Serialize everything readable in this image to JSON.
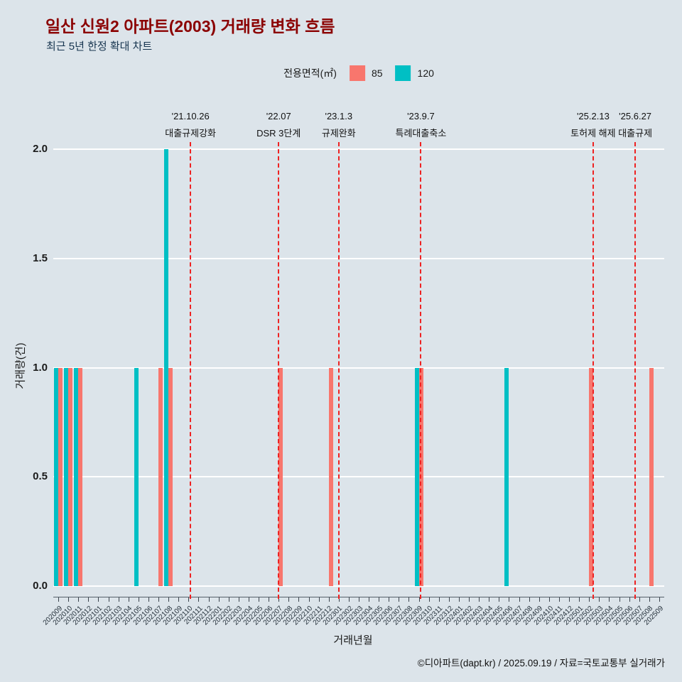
{
  "header": {
    "title": "일산 신원2 아파트(2003) 거래량 변화 흐름",
    "subtitle": "최근 5년 한정 확대 차트"
  },
  "legend": {
    "label": "전용면적(㎡)",
    "items": [
      {
        "name": "85",
        "color": "#F8766D"
      },
      {
        "name": "120",
        "color": "#00BFC4"
      }
    ]
  },
  "colors": {
    "background": "#dce4ea",
    "grid": "#ffffff",
    "title": "#8b0000",
    "subtitle": "#16344f",
    "event_line": "#ee2222",
    "bar_85": "#F8766D",
    "bar_120": "#00BFC4"
  },
  "axes": {
    "x_title": "거래년월",
    "y_title": "거래량(건)"
  },
  "footer": {
    "credit": "©디아파트(dapt.kr) / 2025.09.19 / 자료=국토교통부 실거래가"
  },
  "chart_data": {
    "type": "bar",
    "title": "일산 신원2 아파트(2003) 거래량 변화 흐름",
    "subtitle": "최근 5년 한정 확대 차트",
    "xlabel": "거래년월",
    "ylabel": "거래량(건)",
    "ylim": [
      0,
      2
    ],
    "yticks": [
      0,
      0.5,
      1,
      1.5,
      2
    ],
    "ytick_labels": [
      "0.0",
      "0.5",
      "1.0",
      "1.5",
      "2.0"
    ],
    "grid": "horizontal",
    "legend_position": "top-center",
    "categories": [
      "202009",
      "202010",
      "202011",
      "202012",
      "202101",
      "202102",
      "202103",
      "202104",
      "202105",
      "202106",
      "202107",
      "202108",
      "202109",
      "202110",
      "202111",
      "202112",
      "202201",
      "202202",
      "202203",
      "202204",
      "202205",
      "202206",
      "202207",
      "202208",
      "202209",
      "202210",
      "202211",
      "202212",
      "202301",
      "202302",
      "202303",
      "202304",
      "202305",
      "202306",
      "202307",
      "202308",
      "202309",
      "202310",
      "202311",
      "202312",
      "202401",
      "202402",
      "202403",
      "202404",
      "202405",
      "202406",
      "202407",
      "202408",
      "202409",
      "202410",
      "202411",
      "202412",
      "202501",
      "202502",
      "202503",
      "202504",
      "202505",
      "202506",
      "202507",
      "202508",
      "202509"
    ],
    "series": [
      {
        "name": "120",
        "color": "#00BFC4",
        "values": [
          1,
          1,
          1,
          0,
          0,
          0,
          0,
          0,
          1,
          0,
          0,
          2,
          0,
          0,
          0,
          0,
          0,
          0,
          0,
          0,
          0,
          0,
          0,
          0,
          0,
          0,
          0,
          0,
          0,
          0,
          0,
          0,
          0,
          0,
          0,
          0,
          1,
          0,
          0,
          0,
          0,
          0,
          0,
          0,
          0,
          1,
          0,
          0,
          0,
          0,
          0,
          0,
          0,
          0,
          0,
          0,
          0,
          0,
          0,
          0,
          0
        ]
      },
      {
        "name": "85",
        "color": "#F8766D",
        "values": [
          1,
          1,
          1,
          0,
          0,
          0,
          0,
          0,
          0,
          0,
          1,
          1,
          0,
          0,
          0,
          0,
          0,
          0,
          0,
          0,
          0,
          0,
          1,
          0,
          0,
          0,
          0,
          1,
          0,
          0,
          0,
          0,
          0,
          0,
          0,
          0,
          1,
          0,
          0,
          0,
          0,
          0,
          0,
          0,
          0,
          0,
          0,
          0,
          0,
          0,
          0,
          0,
          0,
          1,
          0,
          0,
          0,
          0,
          0,
          1,
          0
        ]
      }
    ],
    "events": [
      {
        "date": "'21.10.26",
        "label": "대출규제강화",
        "index": 13.2
      },
      {
        "date": "'22.07",
        "label": "DSR 3단계",
        "index": 22.0
      },
      {
        "date": "'23.1.3",
        "label": "규제완화",
        "index": 28.0
      },
      {
        "date": "'23.9.7",
        "label": "특례대출축소",
        "index": 36.2
      },
      {
        "date": "'25.2.13",
        "label": "토허제 해제",
        "index": 53.4
      },
      {
        "date": "'25.6.27",
        "label": "대출규제",
        "index": 57.6
      }
    ]
  }
}
